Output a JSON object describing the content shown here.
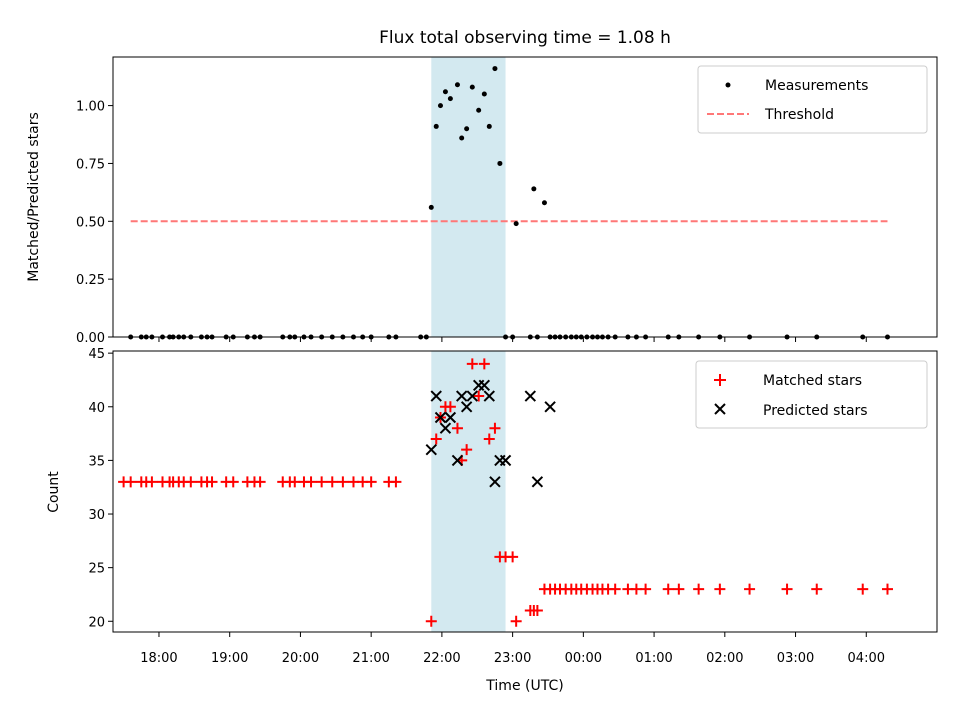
{
  "chart_data": [
    {
      "type": "scatter",
      "title": "Flux total observing time = 1.08 h",
      "xlabel": "",
      "ylabel": "Matched/Predicted stars",
      "x_unit": "hours since 17:00 UTC",
      "xlim": [
        0.35,
        12.0
      ],
      "ylim": [
        0.0,
        1.21
      ],
      "yticks": [
        0.0,
        0.25,
        0.5,
        0.75,
        1.0
      ],
      "ytick_labels": [
        "0.00",
        "0.25",
        "0.50",
        "0.75",
        "1.00"
      ],
      "highlight_span": {
        "x0": 4.85,
        "x1": 5.9,
        "color": "#d3e9f0"
      },
      "legend_position": "upper right",
      "series": [
        {
          "name": "Measurements",
          "marker": "dot",
          "color": "#000000",
          "x": [
            0.6,
            0.75,
            0.82,
            0.9,
            1.05,
            1.15,
            1.2,
            1.28,
            1.35,
            1.45,
            1.6,
            1.68,
            1.75,
            1.95,
            2.05,
            2.25,
            2.35,
            2.43,
            2.75,
            2.85,
            2.92,
            3.05,
            3.15,
            3.3,
            3.45,
            3.6,
            3.75,
            3.88,
            4.0,
            4.25,
            4.35,
            4.7,
            4.78,
            4.85,
            4.92,
            4.98,
            5.05,
            5.12,
            5.22,
            5.28,
            5.35,
            5.43,
            5.52,
            5.6,
            5.67,
            5.75,
            5.82,
            5.9,
            6.0,
            6.05,
            6.25,
            6.3,
            6.35,
            6.45,
            6.53,
            6.6,
            6.67,
            6.75,
            6.83,
            6.9,
            6.97,
            7.05,
            7.13,
            7.2,
            7.27,
            7.35,
            7.45,
            7.63,
            7.75,
            7.88,
            8.2,
            8.35,
            8.63,
            8.93,
            9.35,
            9.88,
            10.3,
            10.95,
            11.3
          ],
          "y": [
            0,
            0,
            0,
            0,
            0,
            0,
            0,
            0,
            0,
            0,
            0,
            0,
            0,
            0,
            0,
            0,
            0,
            0,
            0,
            0,
            0,
            0,
            0,
            0,
            0,
            0,
            0,
            0,
            0,
            0,
            0,
            0,
            0,
            0.56,
            0.91,
            1.0,
            1.06,
            1.03,
            1.09,
            0.86,
            0.9,
            1.08,
            0.98,
            1.05,
            0.91,
            1.16,
            0.75,
            0,
            0,
            0.49,
            0,
            0.64,
            0,
            0.58,
            0,
            0,
            0,
            0,
            0,
            0,
            0,
            0,
            0,
            0,
            0,
            0,
            0,
            0,
            0,
            0,
            0,
            0,
            0,
            0,
            0,
            0,
            0,
            0,
            0
          ]
        },
        {
          "name": "Threshold",
          "style": "dashed",
          "color": "#ff7777",
          "x": [
            0.6,
            11.3
          ],
          "y": [
            0.5,
            0.5
          ]
        }
      ]
    },
    {
      "type": "scatter",
      "title": "",
      "xlabel": "Time (UTC)",
      "ylabel": "Count",
      "x_unit": "hours since 17:00 UTC",
      "xlim": [
        0.35,
        12.0
      ],
      "ylim": [
        19.0,
        45.2
      ],
      "yticks": [
        20,
        25,
        30,
        35,
        40,
        45
      ],
      "ytick_labels": [
        "20",
        "25",
        "30",
        "35",
        "40",
        "45"
      ],
      "xticks": [
        1,
        2,
        3,
        4,
        5,
        6,
        7,
        8,
        9,
        10,
        11
      ],
      "xtick_labels": [
        "18:00",
        "19:00",
        "20:00",
        "21:00",
        "22:00",
        "23:00",
        "00:00",
        "01:00",
        "02:00",
        "03:00",
        "04:00"
      ],
      "highlight_span": {
        "x0": 4.85,
        "x1": 5.9,
        "color": "#d3e9f0"
      },
      "legend_position": "upper right",
      "series": [
        {
          "name": "Matched stars",
          "marker": "plus",
          "color": "#ff0000",
          "x": [
            0.5,
            0.6,
            0.75,
            0.82,
            0.9,
            1.05,
            1.15,
            1.2,
            1.28,
            1.35,
            1.45,
            1.6,
            1.68,
            1.75,
            1.95,
            2.05,
            2.25,
            2.35,
            2.43,
            2.75,
            2.85,
            2.92,
            3.05,
            3.15,
            3.3,
            3.45,
            3.6,
            3.75,
            3.88,
            4.0,
            4.25,
            4.35,
            4.85,
            4.92,
            4.98,
            5.05,
            5.12,
            5.22,
            5.28,
            5.35,
            5.43,
            5.52,
            5.6,
            5.67,
            5.75,
            5.82,
            5.9,
            6.0,
            6.05,
            6.25,
            6.3,
            6.35,
            6.45,
            6.53,
            6.6,
            6.67,
            6.75,
            6.83,
            6.9,
            6.97,
            7.05,
            7.13,
            7.2,
            7.27,
            7.35,
            7.45,
            7.63,
            7.75,
            7.88,
            8.2,
            8.35,
            8.63,
            8.93,
            9.35,
            9.88,
            10.3,
            10.95,
            11.3
          ],
          "y": [
            33,
            33,
            33,
            33,
            33,
            33,
            33,
            33,
            33,
            33,
            33,
            33,
            33,
            33,
            33,
            33,
            33,
            33,
            33,
            33,
            33,
            33,
            33,
            33,
            33,
            33,
            33,
            33,
            33,
            33,
            33,
            33,
            20,
            37,
            39,
            40,
            40,
            38,
            35,
            36,
            44,
            41,
            44,
            37,
            38,
            26,
            26,
            26,
            20,
            21,
            21,
            21,
            23,
            23,
            23,
            23,
            23,
            23,
            23,
            23,
            23,
            23,
            23,
            23,
            23,
            23,
            23,
            23,
            23,
            23,
            23,
            23,
            23,
            23,
            23,
            23,
            23,
            23
          ]
        },
        {
          "name": "Predicted stars",
          "marker": "x",
          "color": "#000000",
          "x": [
            4.85,
            4.92,
            4.98,
            5.05,
            5.12,
            5.22,
            5.28,
            5.35,
            5.43,
            5.52,
            5.6,
            5.67,
            5.75,
            5.82,
            5.9,
            6.25,
            6.35,
            6.53
          ],
          "y": [
            36,
            41,
            39,
            38,
            39,
            35,
            41,
            40,
            41,
            42,
            42,
            41,
            33,
            35,
            35,
            41,
            33,
            40
          ]
        }
      ]
    }
  ]
}
